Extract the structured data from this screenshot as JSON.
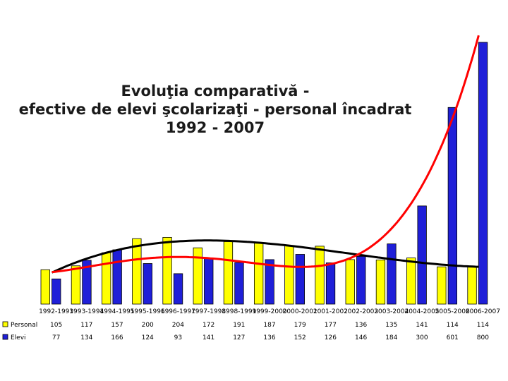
{
  "chart_data": {
    "type": "bar",
    "title": [
      "Evoluţia comparativă -",
      "efective de elevi şcolarizaţi - personal încadrat",
      "1992 - 2007"
    ],
    "categories": [
      "1992-1993",
      "1993-1994",
      "1994-1995",
      "1995-1996",
      "1996-1997",
      "1997-1998",
      "1998-1999",
      "1999-2000",
      "2000-2001",
      "2001-2002",
      "2002-2003",
      "2003-2004",
      "2004-2005",
      "2005-2006",
      "2006-2007"
    ],
    "series": [
      {
        "name": "Personal",
        "color": "#ffff00",
        "values": [
          105,
          117,
          157,
          200,
          204,
          172,
          191,
          187,
          179,
          177,
          136,
          135,
          141,
          114,
          114
        ]
      },
      {
        "name": "Elevi",
        "color": "#1f1fd8",
        "values": [
          77,
          134,
          166,
          124,
          93,
          141,
          127,
          136,
          152,
          126,
          146,
          184,
          300,
          601,
          800
        ]
      }
    ],
    "trendlines": [
      {
        "series": "Personal",
        "color": "#000000"
      },
      {
        "series": "Elevi",
        "color": "#ff0000"
      }
    ],
    "ylim": [
      0,
      800
    ],
    "grid": false,
    "data_table": true
  }
}
